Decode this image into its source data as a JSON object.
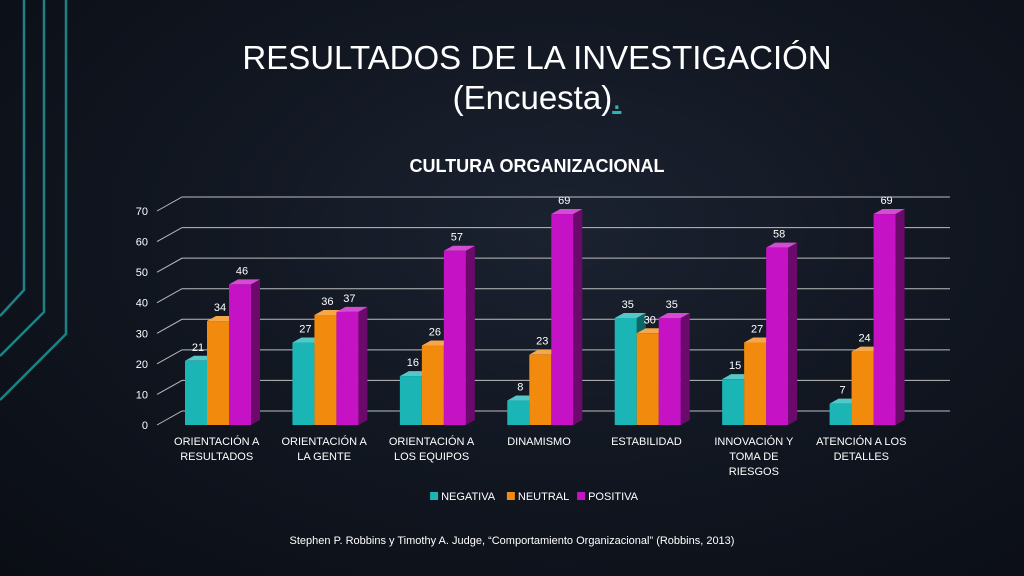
{
  "slide": {
    "title_line1": "RESULTADOS DE LA INVESTIGACIÓN",
    "title_line2": "(Encuesta)",
    "title_dot": ".",
    "citation": "Stephen P. Robbins y Timothy A. Judge, “Comportamiento Organizacional” (Robbins, 2013)"
  },
  "colors": {
    "background": "#10151f",
    "accent_lines": "#1f8e91",
    "negativa": "#1bb5b5",
    "neutral": "#f18a0d",
    "positiva": "#c412c4"
  },
  "chart_data": {
    "type": "bar",
    "title": "CULTURA ORGANIZACIONAL",
    "categories": [
      [
        "ORIENTACIÓN A",
        "RESULTADOS"
      ],
      [
        "ORIENTACIÓN A",
        "LA GENTE"
      ],
      [
        "ORIENTACIÓN A",
        "LOS EQUIPOS"
      ],
      [
        "DINAMISMO"
      ],
      [
        "ESTABILIDAD"
      ],
      [
        "INNOVACIÓN Y",
        "TOMA DE",
        "RIESGOS"
      ],
      [
        "ATENCIÓN A LOS",
        "DETALLES"
      ]
    ],
    "series": [
      {
        "name": "NEGATIVA",
        "color": "#1bb5b5",
        "values": [
          21,
          27,
          16,
          8,
          35,
          15,
          7
        ]
      },
      {
        "name": "NEUTRAL",
        "color": "#f18a0d",
        "values": [
          34,
          36,
          26,
          23,
          30,
          27,
          24
        ]
      },
      {
        "name": "POSITIVA",
        "color": "#c412c4",
        "values": [
          46,
          37,
          57,
          69,
          35,
          58,
          69
        ]
      }
    ],
    "yticks": [
      0,
      10,
      20,
      30,
      40,
      50,
      60,
      70
    ],
    "ylim": [
      0,
      70
    ],
    "grid": true,
    "legend_position": "bottom",
    "three_d": true
  }
}
